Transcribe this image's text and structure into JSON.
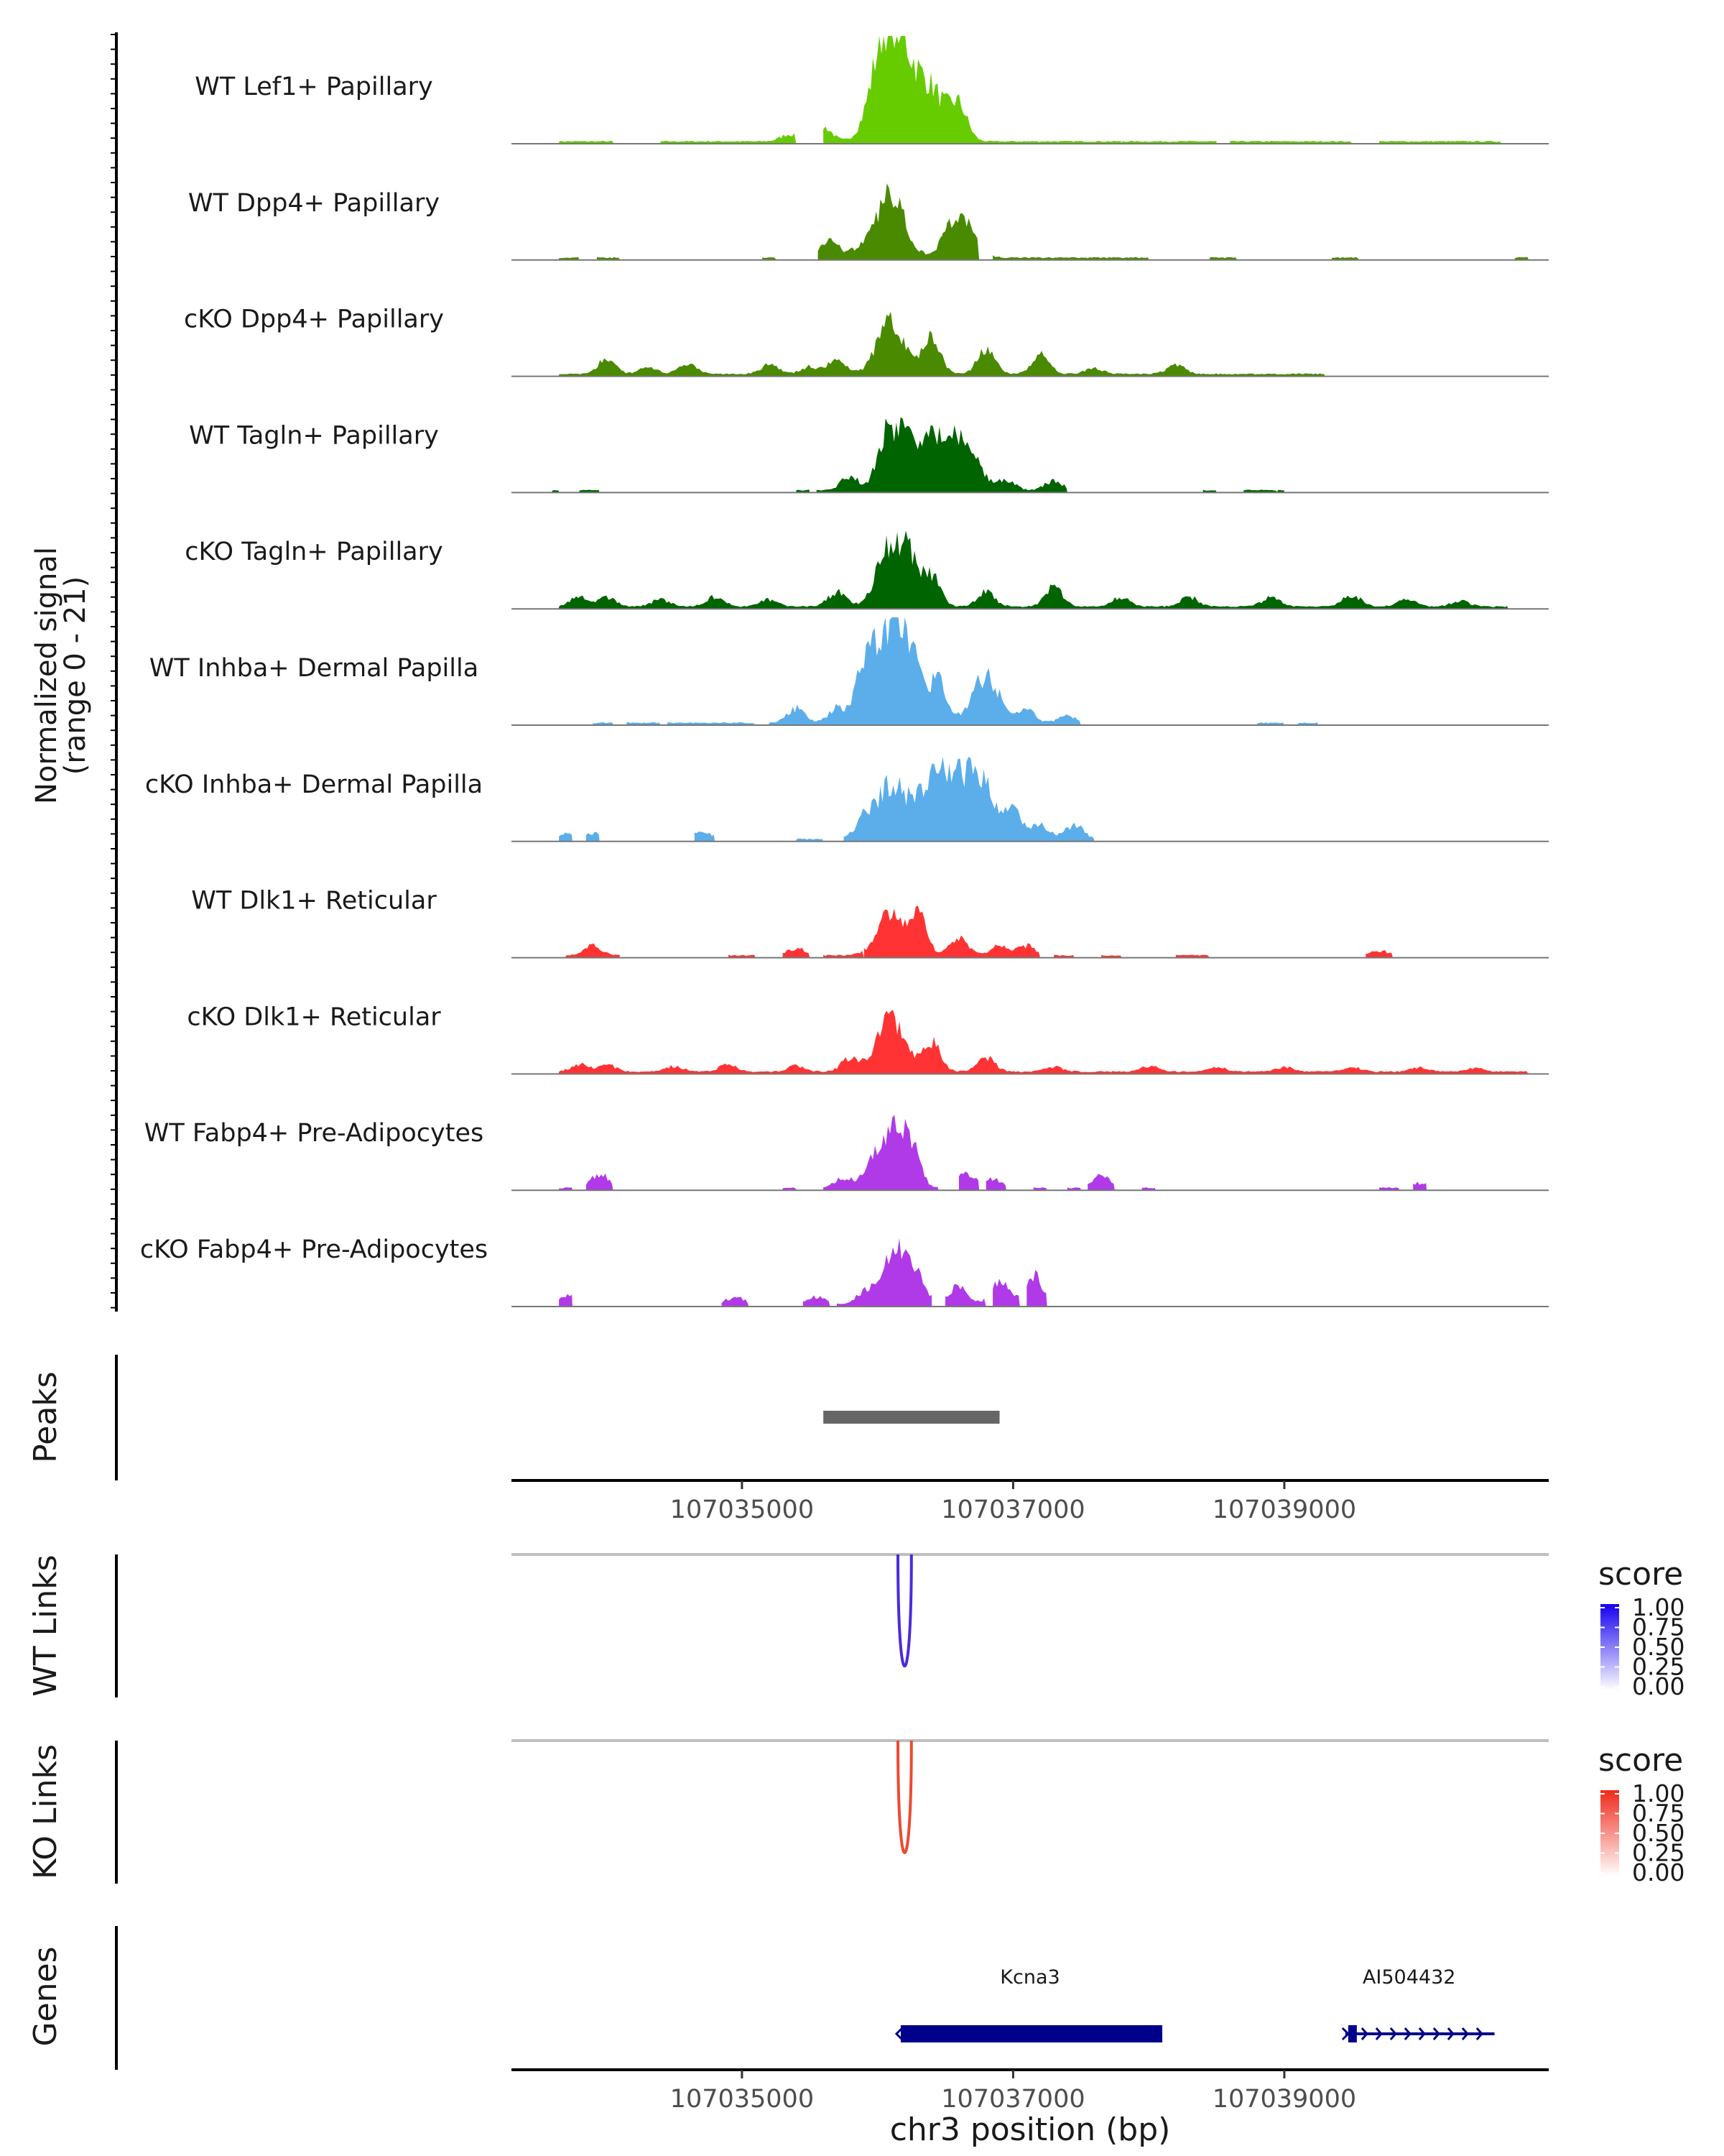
{
  "figure": {
    "y_axis_title_line1": "Normalized signal",
    "y_axis_title_line2": "(range 0 - 21)",
    "peaks_label": "Peaks",
    "wt_links_label": "WT Links",
    "ko_links_label": "KO Links",
    "genes_label": "Genes",
    "x_axis_title": "chr3 position (bp)",
    "legend_title_wt": "score",
    "legend_title_ko": "score"
  },
  "chart_data": {
    "type": "area",
    "title": "",
    "xlabel": "chr3 position (bp)",
    "ylabel": "Normalized signal (range 0 - 21)",
    "xlim": [
      107033300,
      107040950
    ],
    "ylim": [
      0,
      21
    ],
    "x_ticks": [
      107035000,
      107037000,
      107039000
    ],
    "x_tick_labels": [
      "107035000",
      "107037000",
      "107039000"
    ],
    "tracks": [
      {
        "name": "WT Lef1+ Papillary",
        "color": "#66cc00",
        "segments": [
          [
            107033650,
            107034050
          ],
          [
            107034400,
            107035400
          ],
          [
            107035600,
            107037800
          ],
          [
            107037800,
            107038500
          ],
          [
            107038600,
            107039500
          ],
          [
            107039700,
            107040600
          ]
        ],
        "peaks": [
          [
            107035600,
            3
          ],
          [
            107036050,
            20
          ],
          [
            107036200,
            14
          ],
          [
            107036600,
            7
          ],
          [
            107036400,
            10
          ],
          [
            107035350,
            1.5
          ]
        ]
      },
      {
        "name": "WT Dpp4+ Papillary",
        "color": "#4a8a00",
        "segments": [
          [
            107033650,
            107033800
          ],
          [
            107033930,
            107034100
          ],
          [
            107035150,
            107035250
          ],
          [
            107035560,
            107036550
          ],
          [
            107036450,
            107036750
          ],
          [
            107036850,
            107038000
          ],
          [
            107038450,
            107038650
          ],
          [
            107039350,
            107039550
          ],
          [
            107040700,
            107040800
          ]
        ],
        "peaks": [
          [
            107035650,
            4
          ],
          [
            107036100,
            14
          ],
          [
            107036600,
            9
          ],
          [
            107035870,
            2
          ]
        ]
      },
      {
        "name": "cKO Dpp4+ Papillary",
        "color": "#4a8a00",
        "segments": [
          [
            107033650,
            107039300
          ]
        ],
        "peaks": [
          [
            107034000,
            3
          ],
          [
            107034600,
            2
          ],
          [
            107035200,
            2
          ],
          [
            107035700,
            3
          ],
          [
            107036100,
            11
          ],
          [
            107036400,
            8
          ],
          [
            107036800,
            5
          ],
          [
            107037200,
            4
          ],
          [
            107038200,
            2
          ],
          [
            107034300,
            1.5
          ],
          [
            107035500,
            1.5
          ],
          [
            107037600,
            1.2
          ]
        ]
      },
      {
        "name": "WT Tagln+ Papillary",
        "color": "#006400",
        "segments": [
          [
            107033600,
            107033650
          ],
          [
            107033800,
            107033950
          ],
          [
            107035400,
            107035500
          ],
          [
            107035550,
            107037400
          ],
          [
            107038400,
            107038500
          ],
          [
            107038700,
            107038950
          ],
          [
            107038950,
            107039000
          ]
        ],
        "peaks": [
          [
            107035800,
            3
          ],
          [
            107036200,
            12
          ],
          [
            107036450,
            11
          ],
          [
            107036650,
            9
          ],
          [
            107036050,
            8
          ],
          [
            107036950,
            2
          ],
          [
            107037300,
            2
          ]
        ]
      },
      {
        "name": "cKO Tagln+ Papillary",
        "color": "#006400",
        "segments": [
          [
            107033650,
            107040650
          ]
        ],
        "peaks": [
          [
            107033800,
            2
          ],
          [
            107034000,
            2
          ],
          [
            107034400,
            1.5
          ],
          [
            107034800,
            2
          ],
          [
            107035200,
            1.5
          ],
          [
            107035700,
            3
          ],
          [
            107036100,
            13
          ],
          [
            107036400,
            6
          ],
          [
            107036800,
            3
          ],
          [
            107037300,
            4
          ],
          [
            107037800,
            2
          ],
          [
            107038300,
            2
          ],
          [
            107038900,
            2
          ],
          [
            107039500,
            2.5
          ],
          [
            107039900,
            1.5
          ],
          [
            107040300,
            1.2
          ],
          [
            107036250,
            7
          ]
        ]
      },
      {
        "name": "WT Inhba+ Dermal Papilla",
        "color": "#5caeeb",
        "segments": [
          [
            107033900,
            107034050
          ],
          [
            107034150,
            107034400
          ],
          [
            107034450,
            107034800
          ],
          [
            107034800,
            107035100
          ],
          [
            107035200,
            107037500
          ],
          [
            107038800,
            107039000
          ],
          [
            107039100,
            107039250
          ]
        ],
        "peaks": [
          [
            107035400,
            3
          ],
          [
            107035700,
            3
          ],
          [
            107036000,
            13
          ],
          [
            107036200,
            19
          ],
          [
            107036450,
            8
          ],
          [
            107036800,
            10
          ],
          [
            107037100,
            2.5
          ],
          [
            107037400,
            1.5
          ],
          [
            107035900,
            6
          ]
        ]
      },
      {
        "name": "cKO Inhba+ Dermal Papilla",
        "color": "#5caeeb",
        "segments": [
          [
            107033650,
            107033750
          ],
          [
            107033850,
            107033950
          ],
          [
            107034650,
            107034800
          ],
          [
            107035400,
            107035600
          ],
          [
            107035750,
            107037600
          ]
        ],
        "peaks": [
          [
            107033700,
            1.2
          ],
          [
            107033900,
            1.2
          ],
          [
            107034700,
            2
          ],
          [
            107035900,
            4
          ],
          [
            107036100,
            12
          ],
          [
            107036300,
            7
          ],
          [
            107036550,
            11
          ],
          [
            107036750,
            13
          ],
          [
            107037000,
            6
          ],
          [
            107037200,
            3
          ],
          [
            107037450,
            3
          ],
          [
            107036420,
            8
          ]
        ]
      },
      {
        "name": "WT Dlk1+ Reticular",
        "color": "#ff3333",
        "segments": [
          [
            107033700,
            107034100
          ],
          [
            107034900,
            107035100
          ],
          [
            107035300,
            107035500
          ],
          [
            107035600,
            107035900
          ],
          [
            107035900,
            107037200
          ],
          [
            107037300,
            107037450
          ],
          [
            107037650,
            107037800
          ],
          [
            107038200,
            107038450
          ],
          [
            107039600,
            107039800
          ]
        ],
        "peaks": [
          [
            107033900,
            2
          ],
          [
            107035400,
            1.5
          ],
          [
            107036100,
            9
          ],
          [
            107036300,
            8
          ],
          [
            107036600,
            4
          ],
          [
            107036900,
            2
          ],
          [
            107037100,
            2
          ],
          [
            107039700,
            1
          ]
        ]
      },
      {
        "name": "cKO Dlk1+ Reticular",
        "color": "#ff3333",
        "segments": [
          [
            107033650,
            107040800
          ]
        ],
        "peaks": [
          [
            107033800,
            1.5
          ],
          [
            107034000,
            1.5
          ],
          [
            107034500,
            1.2
          ],
          [
            107034900,
            1.5
          ],
          [
            107035400,
            1.2
          ],
          [
            107035800,
            3
          ],
          [
            107036100,
            11
          ],
          [
            107036400,
            6
          ],
          [
            107036800,
            3
          ],
          [
            107037300,
            1
          ],
          [
            107038000,
            1.2
          ],
          [
            107038500,
            1
          ],
          [
            107039000,
            1
          ],
          [
            107039500,
            1
          ],
          [
            107040000,
            0.8
          ],
          [
            107040400,
            0.8
          ]
        ]
      },
      {
        "name": "WT Fabp4+ Pre-Adipocytes",
        "color": "#b03ae8",
        "segments": [
          [
            107033650,
            107033750
          ],
          [
            107033850,
            107034050
          ],
          [
            107035300,
            107035400
          ],
          [
            107035600,
            107036450
          ],
          [
            107036600,
            107036750
          ],
          [
            107036800,
            107036950
          ],
          [
            107037150,
            107037250
          ],
          [
            107037400,
            107037500
          ],
          [
            107037550,
            107037750
          ],
          [
            107037950,
            107038050
          ],
          [
            107039700,
            107039850
          ],
          [
            107039950,
            107040050
          ]
        ],
        "peaks": [
          [
            107033950,
            3
          ],
          [
            107035750,
            2
          ],
          [
            107035950,
            3
          ],
          [
            107036100,
            12
          ],
          [
            107036250,
            7
          ],
          [
            107036650,
            3
          ],
          [
            107036850,
            2
          ],
          [
            107037650,
            2.5
          ],
          [
            107040000,
            1
          ]
        ]
      },
      {
        "name": "cKO Fabp4+ Pre-Adipocytes",
        "color": "#b03ae8",
        "segments": [
          [
            107033650,
            107033750
          ],
          [
            107034850,
            107035050
          ],
          [
            107035450,
            107035650
          ],
          [
            107035700,
            107036400
          ],
          [
            107036500,
            107036800
          ],
          [
            107036850,
            107037050
          ],
          [
            107037100,
            107037250
          ]
        ],
        "peaks": [
          [
            107033700,
            2
          ],
          [
            107034950,
            1.5
          ],
          [
            107035550,
            1.5
          ],
          [
            107035900,
            2.5
          ],
          [
            107036200,
            11
          ],
          [
            107036600,
            4
          ],
          [
            107036900,
            5
          ],
          [
            107037150,
            6
          ],
          [
            107036050,
            5
          ]
        ]
      }
    ],
    "peaks": [
      {
        "start": 107035600,
        "end": 107036900
      }
    ],
    "links": {
      "wt": {
        "start": 107036150,
        "end": 107036250,
        "score": 1.0,
        "color": "#4b2bdc"
      },
      "ko": {
        "start": 107036150,
        "end": 107036250,
        "score": 1.0,
        "color": "#ec4a33"
      }
    },
    "legend": {
      "title": "score",
      "ticks": [
        "1.00",
        "0.75",
        "0.50",
        "0.25",
        "0.00"
      ],
      "wt_color": "#0000ff",
      "ko_color": "#ff0000"
    },
    "genes": [
      {
        "name": "Kcna3",
        "start": 107036150,
        "end": 107038100,
        "strand": "-"
      },
      {
        "name": "AI504432",
        "start": 107039450,
        "end": 107040550,
        "strand": "+"
      }
    ]
  }
}
